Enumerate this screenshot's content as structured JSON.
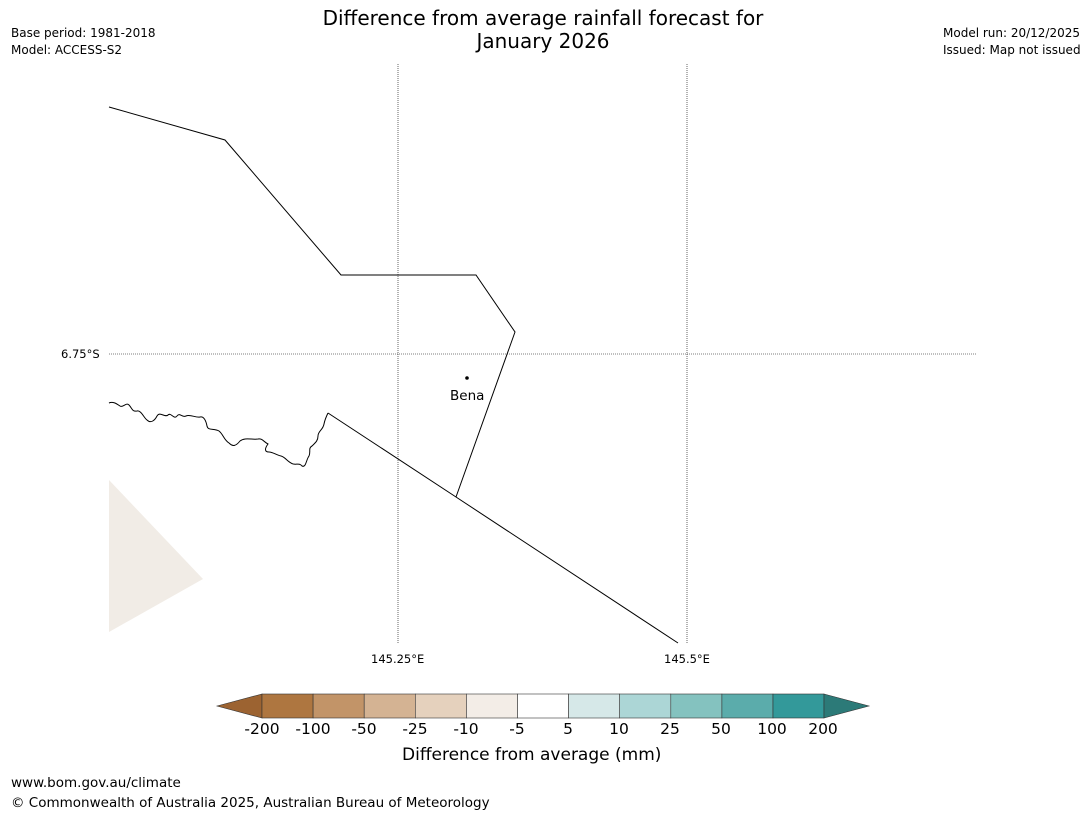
{
  "header": {
    "title_line1": "Difference from average rainfall forecast for",
    "title_line2": "January 2026",
    "base_period": "Base period: 1981-2018",
    "model": "Model: ACCESS-S2",
    "model_run": "Model run: 20/12/2025",
    "issued": "Issued: Map not issued"
  },
  "map": {
    "lat_label": "6.75°S",
    "lon_labels": [
      "145.25°E",
      "145.5°E"
    ],
    "place": {
      "name": "Bena"
    },
    "colors": {
      "land_fill": "#f1ece6",
      "border": "#000000",
      "grid": "#000000"
    }
  },
  "colorbar": {
    "title": "Difference from average (mm)",
    "ticks": [
      "-200",
      "-100",
      "-50",
      "-25",
      "-10",
      "-5",
      "5",
      "10",
      "25",
      "50",
      "100",
      "200"
    ],
    "colors": [
      "#9c6331",
      "#ae7640",
      "#c29468",
      "#d4b393",
      "#e5d1bd",
      "#f3ede7",
      "#ffffff",
      "#d6e8e8",
      "#acd6d6",
      "#84c2bf",
      "#5bacab",
      "#33999a",
      "#2c7a78"
    ]
  },
  "footer": {
    "url": "www.bom.gov.au/climate",
    "copyright": "© Commonwealth of Australia 2025, Australian Bureau of Meteorology"
  }
}
